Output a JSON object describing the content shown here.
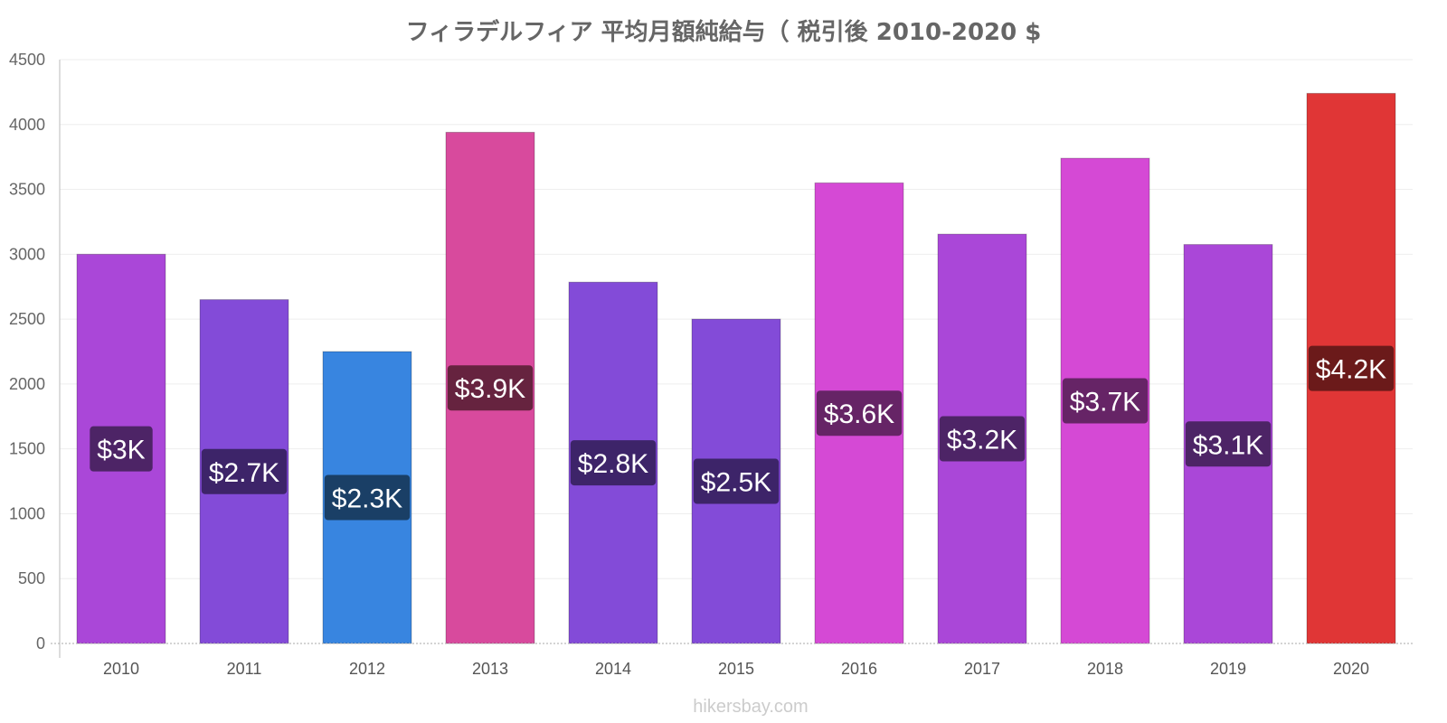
{
  "chart_data": {
    "type": "bar",
    "title": "フィラデルフィア 平均月額純給与（ 税引後 2010-2020 $",
    "xlabel": "",
    "ylabel": "",
    "ylim": [
      0,
      4500
    ],
    "yticks": [
      0,
      500,
      1000,
      1500,
      2000,
      2500,
      3000,
      3500,
      4000,
      4500
    ],
    "categories": [
      "2010",
      "2011",
      "2012",
      "2013",
      "2014",
      "2015",
      "2016",
      "2017",
      "2018",
      "2019",
      "2020"
    ],
    "values": [
      3000,
      2650,
      2250,
      3940,
      2785,
      2500,
      3550,
      3155,
      3740,
      3075,
      4240
    ],
    "labels": [
      "$3K",
      "$2.7K",
      "$2.3K",
      "$3.9K",
      "$2.8K",
      "$2.5K",
      "$3.6K",
      "$3.2K",
      "$3.7K",
      "$3.1K",
      "$4.2K"
    ],
    "colors": [
      "#aa47d8",
      "#834bd8",
      "#3885e0",
      "#d84a9d",
      "#834bd8",
      "#834bd8",
      "#d549d5",
      "#aa47d8",
      "#d549d5",
      "#aa47d8",
      "#e03636"
    ],
    "label_bg_colors": [
      "#4d2466",
      "#3d2469",
      "#1a3f66",
      "#66233f",
      "#3d2469",
      "#3d2469",
      "#662466",
      "#4d2466",
      "#662466",
      "#4d2466",
      "#6b1a1a"
    ],
    "grid": true
  },
  "watermark": "hikersbay.com"
}
